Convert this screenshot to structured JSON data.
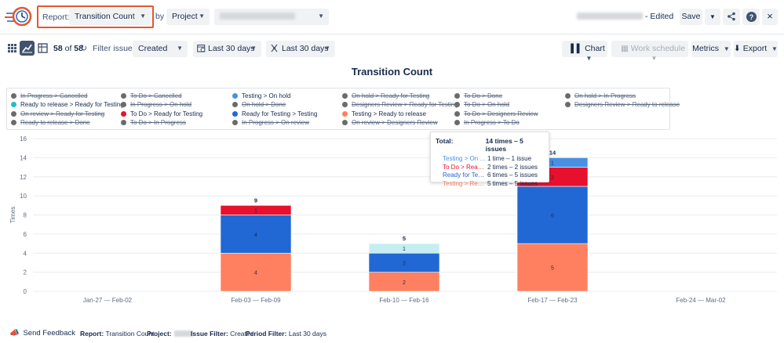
{
  "header": {
    "report_label": "Report:",
    "report_value": "Transition Count",
    "by_label": "by",
    "group_value": "Project",
    "edited_label": "- Edited",
    "save_label": "Save",
    "close_label": "×"
  },
  "toolbar": {
    "count_shown": "58",
    "count_of": "of",
    "count_total": "58",
    "filter_label": "Filter issues:",
    "filter_value": "Created",
    "period_value": "Last 30 days",
    "period2_value": "Last 30 days",
    "chart_label": "Chart",
    "work_schedule_label": "Work schedule",
    "metrics_label": "Metrics",
    "export_label": "Export"
  },
  "colors": {
    "accent": "#e4572e",
    "testing_on_hold": "#4a90e2",
    "to_do_ready_for_testing": "#e8112d",
    "ready_for_testing_testing": "#2268d4",
    "testing_ready_to_release": "#ff8060",
    "ready_to_release_ready_for_testing": "#1ec0c8",
    "disabled": "#6b6b6b"
  },
  "legend": [
    {
      "label": "In Progress > Cancelled",
      "enabled": false,
      "color": "#6b6b6b"
    },
    {
      "label": "Ready to release > Ready for Testing",
      "enabled": true,
      "color": "#1ec0c8"
    },
    {
      "label": "On review > Ready for Testing",
      "enabled": false,
      "color": "#6b6b6b"
    },
    {
      "label": "Ready to release > Done",
      "enabled": false,
      "color": "#6b6b6b"
    },
    {
      "label": "To Do > Cancelled",
      "enabled": false,
      "color": "#6b6b6b"
    },
    {
      "label": "In Progress > On hold",
      "enabled": false,
      "color": "#6b6b6b"
    },
    {
      "label": "To Do > Ready for Testing",
      "enabled": true,
      "color": "#e8112d"
    },
    {
      "label": "To Do > In Progress",
      "enabled": false,
      "color": "#6b6b6b"
    },
    {
      "label": "Testing > On hold",
      "enabled": true,
      "color": "#4a90e2"
    },
    {
      "label": "On hold > Done",
      "enabled": false,
      "color": "#6b6b6b"
    },
    {
      "label": "Ready for Testing > Testing",
      "enabled": true,
      "color": "#2268d4"
    },
    {
      "label": "In Progress > On review",
      "enabled": false,
      "color": "#6b6b6b"
    },
    {
      "label": "On hold > Ready for Testing",
      "enabled": false,
      "color": "#6b6b6b"
    },
    {
      "label": "Designers Review > Ready for Testing",
      "enabled": false,
      "color": "#6b6b6b"
    },
    {
      "label": "Testing > Ready to release",
      "enabled": true,
      "color": "#ff8060"
    },
    {
      "label": "On review > Designers Review",
      "enabled": false,
      "color": "#6b6b6b"
    },
    {
      "label": "To Do > Done",
      "enabled": false,
      "color": "#6b6b6b"
    },
    {
      "label": "To Do > On hold",
      "enabled": false,
      "color": "#6b6b6b"
    },
    {
      "label": "To Do > Designers Review",
      "enabled": false,
      "color": "#6b6b6b"
    },
    {
      "label": "In Progress > To Do",
      "enabled": false,
      "color": "#6b6b6b"
    },
    {
      "label": "On hold > In Progress",
      "enabled": false,
      "color": "#6b6b6b"
    },
    {
      "label": "Designers Review > Ready to release",
      "enabled": false,
      "color": "#6b6b6b"
    }
  ],
  "chart_data": {
    "type": "bar",
    "stacked": true,
    "title": "Transition Count",
    "ylabel": "Times",
    "xlabel": "",
    "ylim": [
      0,
      16
    ],
    "yticks": [
      0,
      2,
      4,
      6,
      8,
      10,
      12,
      14,
      16
    ],
    "grid": true,
    "categories": [
      "Jan-27 — Feb-02",
      "Feb-03 — Feb-09",
      "Feb-10 — Feb-16",
      "Feb-17 — Feb-23",
      "Feb-24 — Mar-02"
    ],
    "totals": [
      null,
      9,
      5,
      14,
      null
    ],
    "series": [
      {
        "name": "Testing > Ready to release",
        "color": "#ff8060",
        "values": [
          0,
          4,
          2,
          5,
          0
        ]
      },
      {
        "name": "Ready for Testing > Testing",
        "color": "#2268d4",
        "values": [
          0,
          4,
          2,
          6,
          0
        ]
      },
      {
        "name": "To Do > Ready for Testing",
        "color": "#e8112d",
        "values": [
          0,
          1,
          0,
          2,
          0
        ]
      },
      {
        "name": "Ready to release > Ready for Testing",
        "color": "#c5eef2",
        "values": [
          0,
          0,
          1,
          0,
          0
        ]
      },
      {
        "name": "Testing > On hold",
        "color": "#4a90e2",
        "values": [
          0,
          0,
          0,
          1,
          0
        ]
      }
    ]
  },
  "tooltip": {
    "total_label": "Total:",
    "total_value": "14 times – 5 issues",
    "rows": [
      {
        "name": "Testing > On ho...",
        "value": "1 time – 1 issue",
        "color": "#4a90e2"
      },
      {
        "name": "To Do > Ready f...",
        "value": "2 times – 2 issues",
        "color": "#e8112d"
      },
      {
        "name": "Ready for Testi...",
        "value": "6 times – 5 issues",
        "color": "#2268d4"
      },
      {
        "name": "Testing > Ready...",
        "value": "5 times – 5 issues",
        "color": "#ff8060"
      }
    ]
  },
  "footer": {
    "feedback_label": "Send Feedback",
    "report_key": "Report:",
    "report_val": "Transition Count",
    "project_key": "Project:",
    "issue_filter_key": "Issue Filter:",
    "issue_filter_val": "Created",
    "period_filter_key": "Period Filter:",
    "period_filter_val": "Last 30 days"
  }
}
